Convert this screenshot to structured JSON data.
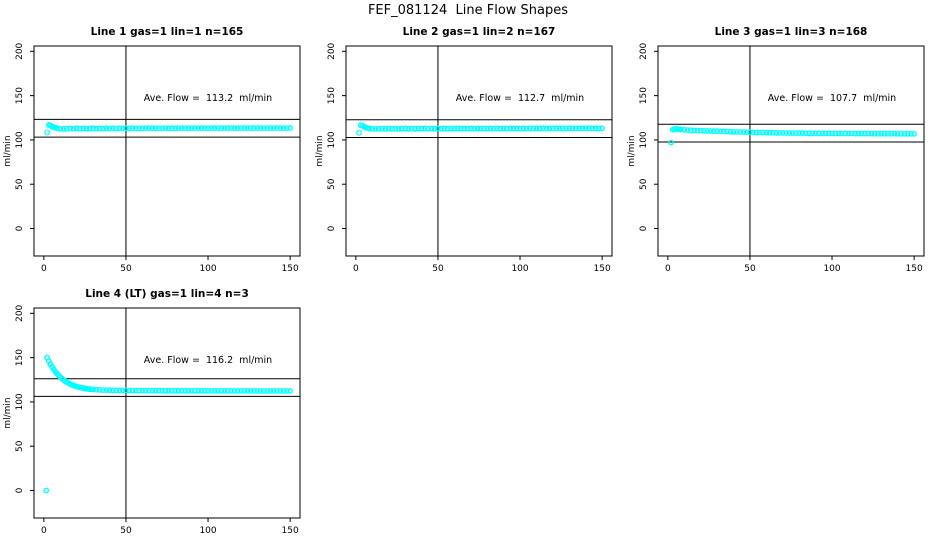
{
  "page_title": "FEF_081124  Line Flow Shapes",
  "colors": {
    "marker": "#00ffff",
    "axis": "#000000",
    "background": "#ffffff"
  },
  "chart_data": [
    {
      "type": "scatter",
      "title": "Line 1 gas=1 lin=1 n=165",
      "annotation": "Ave. Flow =  113.2  ml/min",
      "ave_flow_ml_min": 113.2,
      "ylabel": "ml/min",
      "xticks": [
        0,
        50,
        100,
        150
      ],
      "yticks": [
        0,
        50,
        100,
        150,
        200
      ],
      "xlim": [
        -6,
        156
      ],
      "ylim": [
        -31,
        206
      ],
      "vline_x": 50,
      "hlines": [
        123.2,
        103.2
      ],
      "start_plus": true,
      "points": [
        [
          2,
          108.5
        ],
        [
          3,
          117
        ],
        [
          4,
          116.3
        ],
        [
          5,
          115.2
        ],
        [
          6,
          114.3
        ],
        [
          7,
          113.7
        ],
        [
          8,
          113.2
        ],
        [
          10,
          112.7
        ],
        [
          12,
          112.5
        ],
        [
          14,
          112.6
        ],
        [
          16,
          113.0
        ],
        [
          18,
          112.7
        ],
        [
          20,
          113.2
        ],
        [
          22,
          112.8
        ],
        [
          24,
          113.1
        ],
        [
          26,
          112.6
        ],
        [
          28,
          113.0
        ],
        [
          30,
          113.3
        ],
        [
          32,
          112.7
        ],
        [
          34,
          113.1
        ],
        [
          36,
          112.8
        ],
        [
          38,
          113.2
        ],
        [
          40,
          112.9
        ],
        [
          42,
          113.3
        ],
        [
          44,
          112.8
        ],
        [
          46,
          113.1
        ],
        [
          48,
          112.9
        ],
        [
          50,
          113.2
        ],
        [
          52,
          113.0
        ],
        [
          54,
          113.3
        ],
        [
          56,
          112.9
        ],
        [
          58,
          113.1
        ],
        [
          60,
          113.0
        ],
        [
          62,
          113.3
        ],
        [
          64,
          113.1
        ],
        [
          66,
          113.2
        ],
        [
          68,
          113.0
        ],
        [
          70,
          113.3
        ],
        [
          72,
          113.1
        ],
        [
          74,
          113.4
        ],
        [
          76,
          113.1
        ],
        [
          78,
          113.2
        ],
        [
          80,
          113.0
        ],
        [
          82,
          113.3
        ],
        [
          84,
          113.2
        ],
        [
          86,
          113.4
        ],
        [
          88,
          113.1
        ],
        [
          90,
          113.3
        ],
        [
          92,
          113.2
        ],
        [
          94,
          113.4
        ],
        [
          96,
          113.2
        ],
        [
          98,
          113.3
        ],
        [
          100,
          113.1
        ],
        [
          102,
          113.4
        ],
        [
          104,
          113.2
        ],
        [
          106,
          113.3
        ],
        [
          108,
          113.2
        ],
        [
          110,
          113.4
        ],
        [
          112,
          113.3
        ],
        [
          114,
          113.5
        ],
        [
          116,
          113.2
        ],
        [
          118,
          113.4
        ],
        [
          120,
          113.3
        ],
        [
          122,
          113.5
        ],
        [
          124,
          113.3
        ],
        [
          126,
          113.4
        ],
        [
          128,
          113.2
        ],
        [
          130,
          113.5
        ],
        [
          132,
          113.3
        ],
        [
          134,
          113.4
        ],
        [
          136,
          113.3
        ],
        [
          138,
          113.5
        ],
        [
          140,
          113.4
        ],
        [
          142,
          113.5
        ],
        [
          144,
          113.3
        ],
        [
          146,
          113.4
        ],
        [
          148,
          113.3
        ],
        [
          150,
          113.4
        ]
      ]
    },
    {
      "type": "scatter",
      "title": "Line 2 gas=1 lin=2 n=167",
      "annotation": "Ave. Flow =  112.7  ml/min",
      "ave_flow_ml_min": 112.7,
      "ylabel": "ml/min",
      "xticks": [
        0,
        50,
        100,
        150
      ],
      "yticks": [
        0,
        50,
        100,
        150,
        200
      ],
      "xlim": [
        -6,
        156
      ],
      "ylim": [
        -31,
        206
      ],
      "vline_x": 50,
      "hlines": [
        122.7,
        102.7
      ],
      "start_plus": true,
      "points": [
        [
          2,
          108
        ],
        [
          3,
          116.5
        ],
        [
          4,
          115.9
        ],
        [
          5,
          114.9
        ],
        [
          6,
          114.0
        ],
        [
          7,
          113.5
        ],
        [
          8,
          113.0
        ],
        [
          10,
          112.6
        ],
        [
          12,
          112.4
        ],
        [
          14,
          112.5
        ],
        [
          16,
          112.8
        ],
        [
          18,
          112.5
        ],
        [
          20,
          112.9
        ],
        [
          22,
          112.6
        ],
        [
          24,
          112.8
        ],
        [
          26,
          112.4
        ],
        [
          28,
          112.7
        ],
        [
          30,
          113.0
        ],
        [
          32,
          112.5
        ],
        [
          34,
          112.8
        ],
        [
          36,
          112.6
        ],
        [
          38,
          112.9
        ],
        [
          40,
          112.7
        ],
        [
          42,
          113.0
        ],
        [
          44,
          112.6
        ],
        [
          46,
          112.8
        ],
        [
          48,
          112.7
        ],
        [
          50,
          112.9
        ],
        [
          52,
          112.7
        ],
        [
          54,
          113.0
        ],
        [
          56,
          112.6
        ],
        [
          58,
          112.8
        ],
        [
          60,
          112.7
        ],
        [
          62,
          113.0
        ],
        [
          64,
          112.8
        ],
        [
          66,
          112.9
        ],
        [
          68,
          112.7
        ],
        [
          70,
          113.0
        ],
        [
          72,
          112.8
        ],
        [
          74,
          113.1
        ],
        [
          76,
          112.8
        ],
        [
          78,
          112.9
        ],
        [
          80,
          112.7
        ],
        [
          82,
          113.0
        ],
        [
          84,
          112.9
        ],
        [
          86,
          113.1
        ],
        [
          88,
          112.8
        ],
        [
          90,
          113.0
        ],
        [
          92,
          112.9
        ],
        [
          94,
          113.1
        ],
        [
          96,
          112.9
        ],
        [
          98,
          113.0
        ],
        [
          100,
          112.8
        ],
        [
          102,
          113.1
        ],
        [
          104,
          112.9
        ],
        [
          106,
          113.0
        ],
        [
          108,
          112.9
        ],
        [
          110,
          113.1
        ],
        [
          112,
          113.0
        ],
        [
          114,
          113.2
        ],
        [
          116,
          112.9
        ],
        [
          118,
          113.1
        ],
        [
          120,
          113.0
        ],
        [
          122,
          113.2
        ],
        [
          124,
          113.0
        ],
        [
          126,
          113.1
        ],
        [
          128,
          112.9
        ],
        [
          130,
          113.2
        ],
        [
          132,
          113.0
        ],
        [
          134,
          113.1
        ],
        [
          136,
          113.0
        ],
        [
          138,
          113.2
        ],
        [
          140,
          113.1
        ],
        [
          142,
          113.2
        ],
        [
          144,
          113.0
        ],
        [
          146,
          113.1
        ],
        [
          148,
          113.0
        ],
        [
          150,
          113.1
        ]
      ]
    },
    {
      "type": "scatter",
      "title": "Line 3 gas=1 lin=3 n=168",
      "annotation": "Ave. Flow =  107.7  ml/min",
      "ave_flow_ml_min": 107.7,
      "ylabel": "ml/min",
      "xticks": [
        0,
        50,
        100,
        150
      ],
      "yticks": [
        0,
        50,
        100,
        150,
        200
      ],
      "xlim": [
        -6,
        156
      ],
      "ylim": [
        -31,
        206
      ],
      "vline_x": 50,
      "hlines": [
        117.7,
        97.7
      ],
      "start_plus": false,
      "points": [
        [
          2,
          97
        ],
        [
          3,
          111.5
        ],
        [
          4,
          112.2
        ],
        [
          5,
          112.4
        ],
        [
          6,
          112.1
        ],
        [
          7,
          111.9
        ],
        [
          8,
          111.7
        ],
        [
          10,
          111.4
        ],
        [
          12,
          111.1
        ],
        [
          14,
          110.9
        ],
        [
          16,
          110.8
        ],
        [
          18,
          110.6
        ],
        [
          20,
          110.5
        ],
        [
          22,
          110.3
        ],
        [
          24,
          110.2
        ],
        [
          26,
          110.0
        ],
        [
          28,
          109.9
        ],
        [
          30,
          109.8
        ],
        [
          32,
          109.6
        ],
        [
          34,
          109.5
        ],
        [
          36,
          109.4
        ],
        [
          38,
          109.3
        ],
        [
          40,
          109.1
        ],
        [
          42,
          109.0
        ],
        [
          44,
          108.9
        ],
        [
          46,
          108.8
        ],
        [
          48,
          108.7
        ],
        [
          50,
          108.6
        ],
        [
          52,
          108.5
        ],
        [
          54,
          108.4
        ],
        [
          56,
          108.4
        ],
        [
          58,
          108.3
        ],
        [
          60,
          108.2
        ],
        [
          62,
          108.1
        ],
        [
          64,
          108.1
        ],
        [
          66,
          108.0
        ],
        [
          68,
          107.9
        ],
        [
          70,
          107.9
        ],
        [
          72,
          107.8
        ],
        [
          74,
          107.8
        ],
        [
          76,
          107.7
        ],
        [
          78,
          107.7
        ],
        [
          80,
          107.6
        ],
        [
          82,
          107.6
        ],
        [
          84,
          107.5
        ],
        [
          86,
          107.5
        ],
        [
          88,
          107.5
        ],
        [
          90,
          107.4
        ],
        [
          92,
          107.4
        ],
        [
          94,
          107.4
        ],
        [
          96,
          107.3
        ],
        [
          98,
          107.3
        ],
        [
          100,
          107.3
        ],
        [
          102,
          107.3
        ],
        [
          104,
          107.2
        ],
        [
          106,
          107.2
        ],
        [
          108,
          107.2
        ],
        [
          110,
          107.2
        ],
        [
          112,
          107.2
        ],
        [
          114,
          107.1
        ],
        [
          116,
          107.1
        ],
        [
          118,
          107.1
        ],
        [
          120,
          107.1
        ],
        [
          122,
          107.1
        ],
        [
          124,
          107.1
        ],
        [
          126,
          107.0
        ],
        [
          128,
          107.0
        ],
        [
          130,
          107.0
        ],
        [
          132,
          107.0
        ],
        [
          134,
          107.0
        ],
        [
          136,
          107.0
        ],
        [
          138,
          107.0
        ],
        [
          140,
          106.9
        ],
        [
          142,
          106.9
        ],
        [
          144,
          106.9
        ],
        [
          146,
          106.9
        ],
        [
          148,
          106.9
        ],
        [
          150,
          106.9
        ]
      ]
    },
    {
      "type": "scatter",
      "title": "Line 4 (LT) gas=1 lin=4 n=3",
      "annotation": "Ave. Flow =  116.2  ml/min",
      "ave_flow_ml_min": 116.2,
      "ylabel": "ml/min",
      "xticks": [
        0,
        50,
        100,
        150
      ],
      "yticks": [
        0,
        50,
        100,
        150,
        200
      ],
      "xlim": [
        -6,
        156
      ],
      "ylim": [
        -31,
        206
      ],
      "vline_x": 50,
      "hlines": [
        126.2,
        106.2
      ],
      "start_plus": false,
      "points": [
        [
          1.5,
          0
        ],
        [
          2,
          150
        ],
        [
          3,
          146.1
        ],
        [
          4,
          142.6
        ],
        [
          5,
          139.5
        ],
        [
          6,
          136.7
        ],
        [
          7,
          134.2
        ],
        [
          8,
          131.9
        ],
        [
          9,
          129.9
        ],
        [
          10,
          128.1
        ],
        [
          11,
          126.5
        ],
        [
          12,
          124.9
        ],
        [
          13,
          123.5
        ],
        [
          14,
          122.3
        ],
        [
          15,
          121.2
        ],
        [
          16,
          120.2
        ],
        [
          17,
          119.4
        ],
        [
          18,
          118.6
        ],
        [
          19,
          117.9
        ],
        [
          20,
          117.3
        ],
        [
          21,
          116.8
        ],
        [
          22,
          116.3
        ],
        [
          23,
          115.9
        ],
        [
          24,
          115.5
        ],
        [
          25,
          115.2
        ],
        [
          26,
          114.9
        ],
        [
          27,
          114.6
        ],
        [
          28,
          114.4
        ],
        [
          29,
          114.2
        ],
        [
          30,
          114.1
        ],
        [
          32,
          113.8
        ],
        [
          34,
          113.6
        ],
        [
          36,
          113.4
        ],
        [
          38,
          113.3
        ],
        [
          40,
          113.2
        ],
        [
          42,
          113.1
        ],
        [
          44,
          113.1
        ],
        [
          46,
          113.0
        ],
        [
          48,
          113.0
        ],
        [
          50,
          112.9
        ],
        [
          52,
          112.9
        ],
        [
          54,
          112.9
        ],
        [
          56,
          112.8
        ],
        [
          58,
          112.8
        ],
        [
          60,
          112.8
        ],
        [
          62,
          112.8
        ],
        [
          64,
          112.7
        ],
        [
          66,
          112.7
        ],
        [
          68,
          112.7
        ],
        [
          70,
          112.7
        ],
        [
          72,
          112.7
        ],
        [
          74,
          112.6
        ],
        [
          76,
          112.6
        ],
        [
          78,
          112.6
        ],
        [
          80,
          112.6
        ],
        [
          82,
          112.6
        ],
        [
          84,
          112.6
        ],
        [
          86,
          112.5
        ],
        [
          88,
          112.5
        ],
        [
          90,
          112.5
        ],
        [
          92,
          112.5
        ],
        [
          94,
          112.5
        ],
        [
          96,
          112.5
        ],
        [
          98,
          112.5
        ],
        [
          100,
          112.5
        ],
        [
          102,
          112.4
        ],
        [
          104,
          112.4
        ],
        [
          106,
          112.4
        ],
        [
          108,
          112.4
        ],
        [
          110,
          112.4
        ],
        [
          112,
          112.4
        ],
        [
          114,
          112.4
        ],
        [
          116,
          112.4
        ],
        [
          118,
          112.4
        ],
        [
          120,
          112.4
        ],
        [
          122,
          112.4
        ],
        [
          124,
          112.3
        ],
        [
          126,
          112.3
        ],
        [
          128,
          112.3
        ],
        [
          130,
          112.3
        ],
        [
          132,
          112.3
        ],
        [
          134,
          112.3
        ],
        [
          136,
          112.3
        ],
        [
          138,
          112.3
        ],
        [
          140,
          112.3
        ],
        [
          142,
          112.3
        ],
        [
          144,
          112.3
        ],
        [
          146,
          112.3
        ],
        [
          148,
          112.3
        ],
        [
          150,
          112.3
        ]
      ]
    }
  ]
}
